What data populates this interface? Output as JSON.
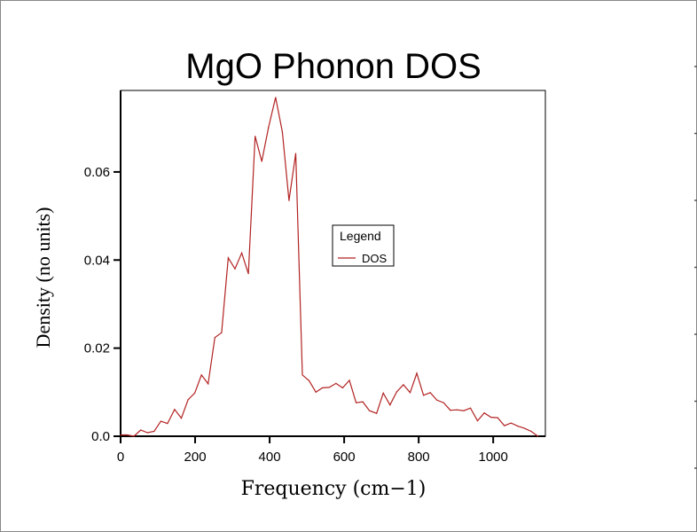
{
  "chart_data": {
    "type": "line",
    "title": "MgO Phonon DOS",
    "xlabel": "Frequency (cm−1)",
    "ylabel": "Density (no units)",
    "xlim": [
      0,
      1140
    ],
    "ylim": [
      0,
      0.0785
    ],
    "xticks": [
      0,
      200,
      400,
      600,
      800,
      1000
    ],
    "xtick_labels": [
      "0",
      "200",
      "400",
      "600",
      "800",
      "1000"
    ],
    "yticks": [
      0,
      0.02,
      0.04,
      0.06
    ],
    "ytick_labels": [
      "0.0",
      "0.02",
      "0.04",
      "0.06"
    ],
    "grid": false,
    "legend": {
      "title": "Legend",
      "placement": "center-right",
      "entries": [
        "DOS"
      ]
    },
    "series": [
      {
        "name": "DOS",
        "color": "#b22222",
        "x": [
          0,
          18,
          36,
          54,
          72,
          90,
          108,
          126,
          145,
          163,
          181,
          199,
          217,
          235,
          253,
          271,
          289,
          307,
          325,
          343,
          361,
          379,
          397,
          416,
          434,
          452,
          470,
          488,
          506,
          524,
          542,
          560,
          578,
          596,
          614,
          632,
          650,
          668,
          687,
          705,
          723,
          741,
          759,
          777,
          795,
          813,
          831,
          849,
          867,
          885,
          903,
          921,
          939,
          958,
          976,
          994,
          1012,
          1030,
          1048,
          1066,
          1084,
          1102,
          1120
        ],
        "y": [
          0.0003,
          0.0003,
          0.0,
          0.0014,
          0.0008,
          0.0011,
          0.0034,
          0.0029,
          0.0061,
          0.0041,
          0.0083,
          0.0098,
          0.0139,
          0.0119,
          0.0224,
          0.0235,
          0.0405,
          0.038,
          0.0416,
          0.0369,
          0.0681,
          0.0624,
          0.0701,
          0.0769,
          0.0691,
          0.0535,
          0.0642,
          0.0139,
          0.0126,
          0.01,
          0.011,
          0.0111,
          0.012,
          0.011,
          0.0127,
          0.0076,
          0.0078,
          0.0058,
          0.0052,
          0.0098,
          0.0071,
          0.0101,
          0.0117,
          0.0099,
          0.0143,
          0.0093,
          0.0099,
          0.0082,
          0.0076,
          0.0059,
          0.006,
          0.0058,
          0.0064,
          0.0035,
          0.0053,
          0.0043,
          0.0042,
          0.0024,
          0.003,
          0.0023,
          0.0018,
          0.0011,
          0.0
        ]
      }
    ]
  }
}
